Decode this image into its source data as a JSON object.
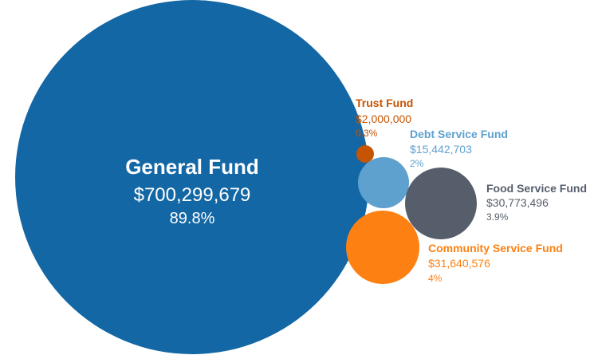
{
  "chart_data": {
    "type": "bubble",
    "series": [
      {
        "name": "General Fund",
        "value": 700299679,
        "amount": "$700,299,679",
        "percent": "89.8%",
        "color": "#1367a5"
      },
      {
        "name": "Trust Fund",
        "value": 2000000,
        "amount": "$2,000,000",
        "percent": "0.3%",
        "color": "#c65402"
      },
      {
        "name": "Debt Service Fund",
        "value": 15442703,
        "amount": "$15,442,703",
        "percent": "2%",
        "color": "#5ea1cf"
      },
      {
        "name": "Food Service Fund",
        "value": 30773496,
        "amount": "$30,773,496",
        "percent": "3.9%",
        "color": "#565e6b"
      },
      {
        "name": "Community Service Fund",
        "value": 31640576,
        "amount": "$31,640,576",
        "percent": "4%",
        "color": "#fd8012"
      }
    ]
  }
}
